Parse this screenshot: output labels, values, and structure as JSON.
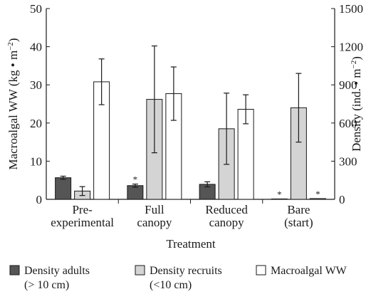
{
  "chart_data": {
    "type": "bar",
    "xlabel": "Treatment",
    "ylabel_left": "Macroalgal WW (kg • m−2)",
    "ylabel_right": "Density (ind. • m−2)",
    "ylim_left": [
      0,
      50
    ],
    "ylim_right": [
      0,
      1500
    ],
    "left_ticks": [
      "0",
      "10",
      "20",
      "30",
      "40",
      "50"
    ],
    "right_ticks": [
      "0",
      "300",
      "600",
      "900",
      "1200",
      "1500"
    ],
    "categories": [
      [
        "Pre-",
        "experimental"
      ],
      [
        "Full",
        "canopy"
      ],
      [
        "Reduced",
        "canopy"
      ],
      [
        "Bare",
        "(start)"
      ]
    ],
    "series": [
      {
        "legend": [
          "Density adults",
          "(> 10 cm)"
        ],
        "axis": "right",
        "color": "#555555",
        "values": [
          170,
          108,
          118,
          3
        ],
        "errors": [
          12,
          12,
          20,
          0
        ],
        "stars": [
          false,
          true,
          false,
          true
        ]
      },
      {
        "legend": [
          "Density recruits",
          "(<10 cm)"
        ],
        "axis": "right",
        "color": "#d4d4d4",
        "values": [
          65,
          786,
          555,
          720
        ],
        "errors": [
          35,
          420,
          280,
          270
        ],
        "stars": [
          false,
          false,
          false,
          false
        ]
      },
      {
        "legend": [
          "Macroalgal WW",
          ""
        ],
        "axis": "left",
        "color": "#ffffff",
        "values": [
          30.8,
          27.7,
          23.6,
          0.2
        ],
        "errors": [
          6.0,
          7.0,
          3.8,
          0
        ],
        "stars": [
          false,
          false,
          false,
          true
        ]
      }
    ],
    "star_symbol": "*",
    "grid": false,
    "legend_position": "bottom"
  }
}
